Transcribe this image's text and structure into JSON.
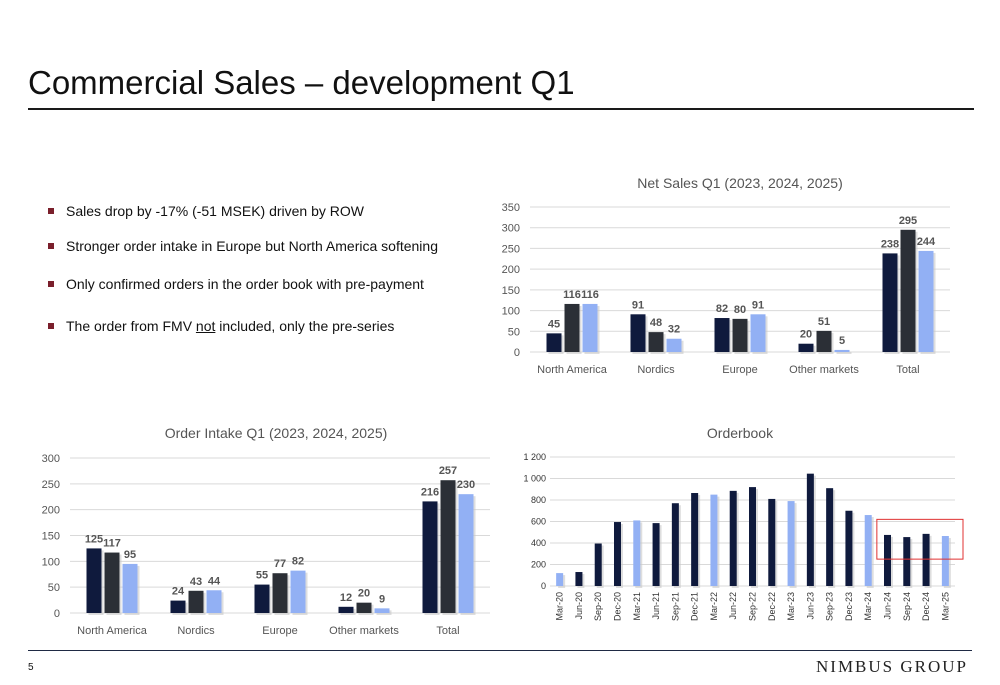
{
  "header": {
    "title": "Commercial Sales – development Q1"
  },
  "bullets": {
    "b1": "Sales drop by -17% (-51 MSEK) driven by ROW",
    "b2": "Stronger order intake in Europe but North America softening",
    "b3": "Only confirmed orders in the order book with pre-payment",
    "b4_pre": "The order from FMV ",
    "b4_under": "not",
    "b4_post": " included, only the pre-series"
  },
  "colors": {
    "y2023": "#0f1a3d",
    "y2024": "#2b2f36",
    "y2025": "#92b0f4",
    "highlight": "#e03030",
    "grid": "#d9d9d9"
  },
  "footer": {
    "page_number": "5",
    "logo": "NIMBUS GROUP"
  },
  "chart_data": [
    {
      "id": "net_sales",
      "type": "bar",
      "title": "Net Sales Q1 (2023, 2024, 2025)",
      "categories": [
        "North America",
        "Nordics",
        "Europe",
        "Other markets",
        "Total"
      ],
      "series": [
        {
          "values": [
            45,
            91,
            82,
            20,
            238
          ]
        },
        {
          "values": [
            116,
            48,
            80,
            51,
            295
          ]
        },
        {
          "values": [
            116,
            32,
            91,
            5,
            244
          ]
        }
      ],
      "ylim": [
        0,
        350
      ],
      "yticks": [
        0,
        50,
        100,
        150,
        200,
        250,
        300,
        350
      ],
      "grid": true
    },
    {
      "id": "order_intake",
      "type": "bar",
      "title": "Order Intake Q1 (2023, 2024, 2025)",
      "categories": [
        "North America",
        "Nordics",
        "Europe",
        "Other markets",
        "Total"
      ],
      "series": [
        {
          "values": [
            125,
            24,
            55,
            12,
            216
          ]
        },
        {
          "values": [
            117,
            43,
            77,
            20,
            257
          ]
        },
        {
          "values": [
            95,
            44,
            82,
            9,
            230
          ]
        }
      ],
      "ylim": [
        0,
        300
      ],
      "yticks": [
        0,
        50,
        100,
        150,
        200,
        250,
        300
      ],
      "grid": true
    },
    {
      "id": "orderbook",
      "type": "bar",
      "title": "Orderbook",
      "categories": [
        "Mar-20",
        "Jun-20",
        "Sep-20",
        "Dec-20",
        "Mar-21",
        "Jun-21",
        "Sep-21",
        "Dec-21",
        "Mar-22",
        "Jun-22",
        "Sep-22",
        "Dec-22",
        "Mar-23",
        "Jun-23",
        "Sep-23",
        "Dec-23",
        "Mar-24",
        "Jun-24",
        "Sep-24",
        "Dec-24",
        "Mar-25"
      ],
      "values": [
        120,
        130,
        395,
        595,
        610,
        585,
        770,
        865,
        850,
        885,
        920,
        810,
        790,
        1045,
        910,
        700,
        660,
        475,
        455,
        485,
        465
      ],
      "bar_styles": [
        "light",
        "dark",
        "dark",
        "dark",
        "light",
        "dark",
        "dark",
        "dark",
        "light",
        "dark",
        "dark",
        "dark",
        "light",
        "dark",
        "dark",
        "dark",
        "light",
        "dark",
        "dark",
        "dark",
        "light"
      ],
      "ylim": [
        0,
        1200
      ],
      "yticks": [
        "0",
        "200",
        "400",
        "600",
        "800",
        "1 000",
        "1 200"
      ],
      "highlight_categories": [
        "Jun-24",
        "Mar-25"
      ],
      "grid": true
    }
  ]
}
